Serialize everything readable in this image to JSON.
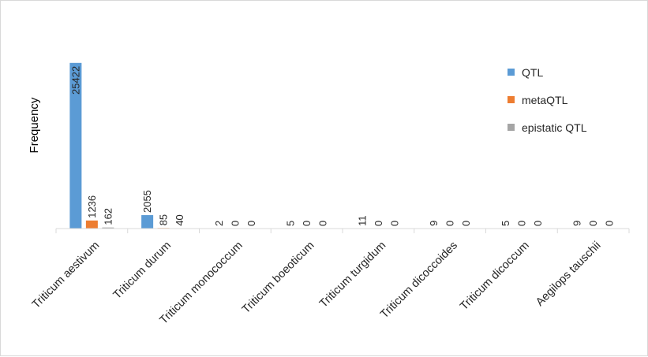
{
  "chart_data": {
    "type": "bar",
    "title": "",
    "xlabel": "",
    "ylabel": "Frequency",
    "ylim": [
      0,
      28000
    ],
    "grid": false,
    "legend_position": "right",
    "categories": [
      "Triticum aestivum",
      "Triticum durum",
      "Triticum monococcum",
      "Triticum boeoticum",
      "Triticum turgidum",
      "Triticum dicoccoides",
      "Triticum dicoccum",
      "Aegilops tauschii"
    ],
    "series": [
      {
        "name": "QTL",
        "color": "#5b9bd5",
        "values": [
          25422,
          2055,
          2,
          5,
          11,
          9,
          5,
          9
        ]
      },
      {
        "name": "metaQTL",
        "color": "#ed7d31",
        "values": [
          1236,
          85,
          0,
          0,
          0,
          0,
          0,
          0
        ]
      },
      {
        "name": "epistatic QTL",
        "color": "#a5a5a5",
        "values": [
          162,
          40,
          0,
          0,
          0,
          0,
          0,
          0
        ]
      }
    ]
  }
}
